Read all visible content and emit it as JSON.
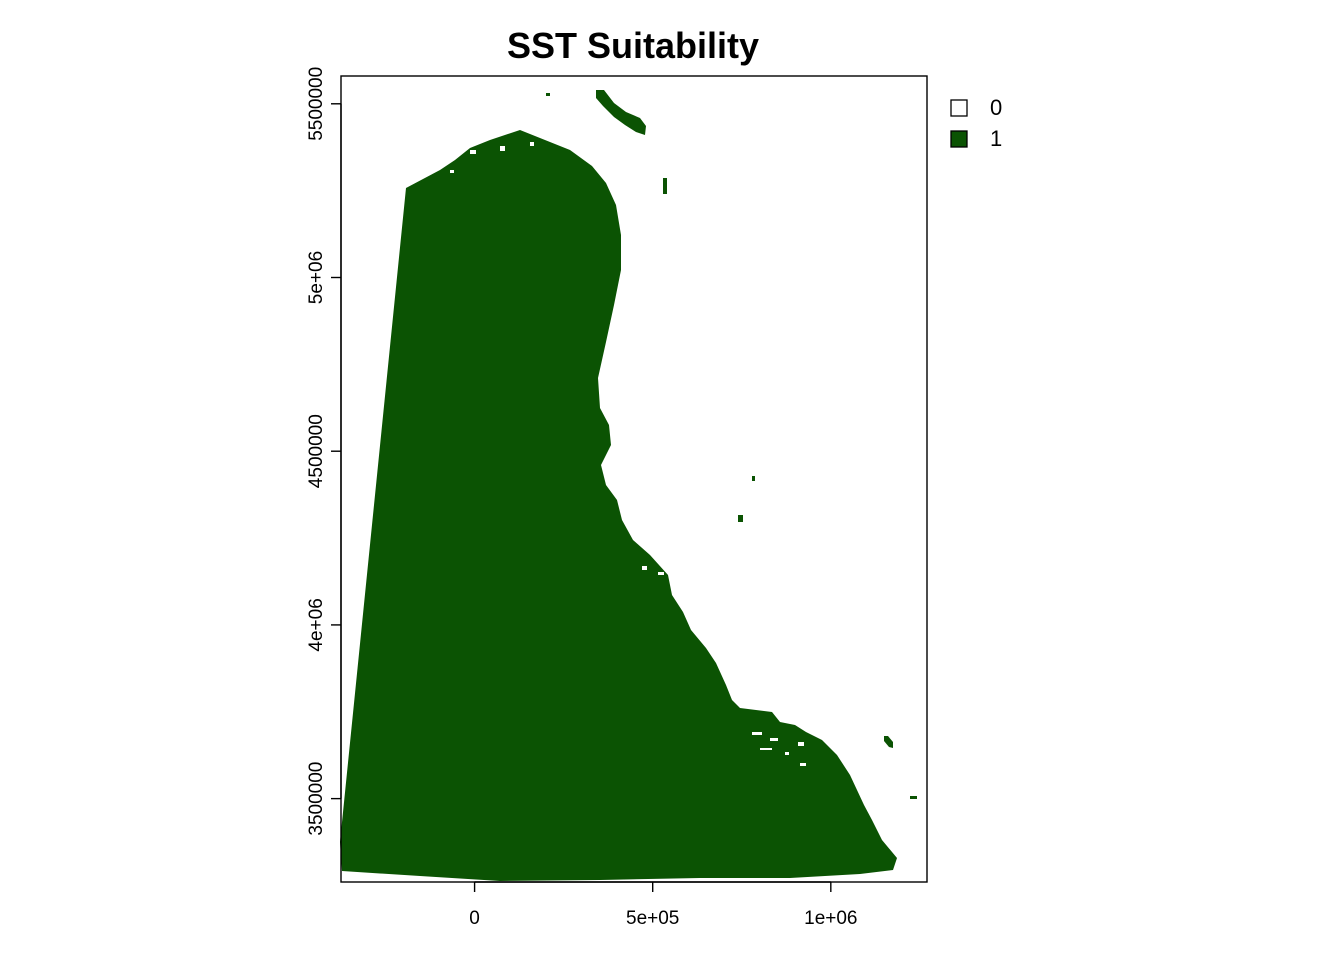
{
  "title": "SST Suitability",
  "colors": {
    "suitable": "#0b5303",
    "unsuitable": "#ffffff",
    "axis": "#000000"
  },
  "axes": {
    "x": {
      "range": [
        -375000,
        1270000
      ],
      "ticks": [
        {
          "value": 0,
          "label": "0"
        },
        {
          "value": 500000,
          "label": "5e+05"
        },
        {
          "value": 1000000,
          "label": "1e+06"
        }
      ]
    },
    "y": {
      "range": [
        3260000,
        5580000
      ],
      "ticks": [
        {
          "value": 3500000,
          "label": "3500000"
        },
        {
          "value": 4000000,
          "label": "4e+06"
        },
        {
          "value": 4500000,
          "label": "4500000"
        },
        {
          "value": 5000000,
          "label": "5e+06"
        },
        {
          "value": 5500000,
          "label": "5500000"
        }
      ]
    }
  },
  "legend": {
    "position": "right",
    "items": [
      {
        "label": "0",
        "color": "#ffffff"
      },
      {
        "label": "1",
        "color": "#0b5303"
      }
    ]
  },
  "raster": {
    "classes": [
      0,
      1
    ]
  }
}
